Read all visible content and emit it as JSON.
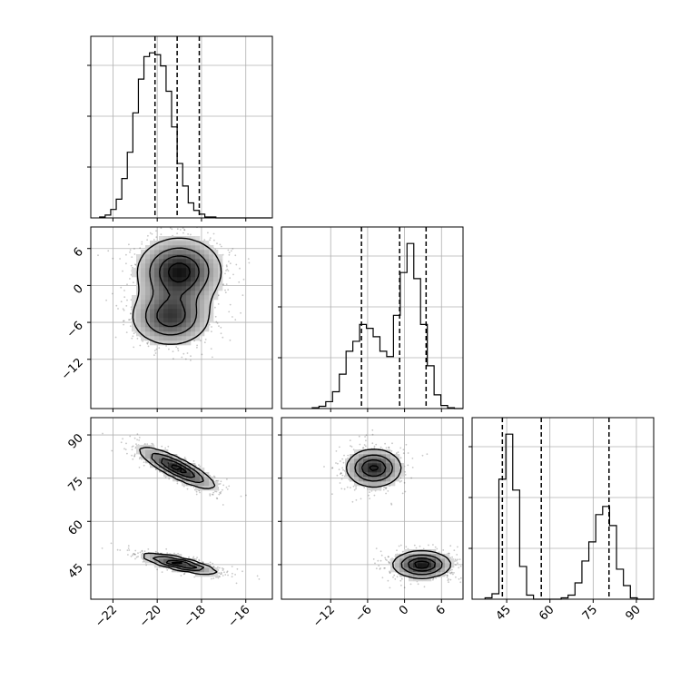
{
  "chart_data": {
    "type": "corner",
    "parameters": [
      {
        "range": [
          -23.0,
          -14.8
        ],
        "ticks": [
          -22,
          -20,
          -18,
          -16
        ],
        "quantiles": [
          -20.1,
          -19.1,
          -18.1
        ]
      },
      {
        "range": [
          -20.0,
          9.5
        ],
        "ticks": [
          -12,
          -6,
          0,
          6
        ],
        "quantiles": [
          -7.0,
          -0.8,
          3.5
        ]
      },
      {
        "range": [
          33.0,
          96.0
        ],
        "ticks": [
          45,
          60,
          75,
          90
        ],
        "quantiles": [
          43.5,
          57.0,
          80.5
        ]
      }
    ],
    "histograms": [
      {
        "param": 0,
        "edges_start": -22.6,
        "bin_width": 0.25,
        "counts": [
          1,
          3,
          9,
          20,
          42,
          70,
          112,
          148,
          172,
          176,
          174,
          162,
          135,
          97,
          58,
          34,
          16,
          8,
          4,
          1,
          1,
          0,
          0,
          0,
          0,
          0,
          0,
          0,
          0,
          0,
          0
        ]
      },
      {
        "param": 1,
        "edges_start": -15.0,
        "bin_width": 1.1,
        "counts": [
          1,
          3,
          9,
          22,
          45,
          75,
          88,
          110,
          105,
          94,
          75,
          68,
          122,
          178,
          216,
          170,
          110,
          56,
          18,
          4,
          1,
          0,
          0,
          0,
          0,
          0,
          0
        ]
      },
      {
        "param": 2,
        "edges_start": 37.5,
        "bin_width": 2.4,
        "counts": [
          1,
          4,
          88,
          121,
          80,
          24,
          3,
          0,
          0,
          0,
          0,
          1,
          3,
          12,
          28,
          42,
          62,
          68,
          54,
          22,
          10,
          1,
          0,
          0,
          0,
          0,
          0
        ]
      }
    ],
    "joint": [
      {
        "x": 0,
        "y": 1,
        "modes": [
          {
            "cx": -19.0,
            "cy": 2.3,
            "sx": 1.05,
            "sy": 3.0,
            "weight": 0.55,
            "rho": 0
          },
          {
            "cx": -19.4,
            "cy": -5.2,
            "sx": 1.0,
            "sy": 2.6,
            "weight": 0.45,
            "rho": 0
          }
        ]
      },
      {
        "x": 0,
        "y": 2,
        "modes": [
          {
            "cx": -19.1,
            "cy": 78.5,
            "sx": 0.95,
            "sy": 4.0,
            "weight": 0.5,
            "rho": -0.85
          },
          {
            "cx": -19.0,
            "cy": 45.3,
            "sx": 0.95,
            "sy": 2.0,
            "weight": 0.5,
            "rho": -0.8
          }
        ]
      },
      {
        "x": 1,
        "y": 2,
        "modes": [
          {
            "cx": -5.0,
            "cy": 78.5,
            "sx": 2.5,
            "sy": 3.7,
            "weight": 0.48,
            "rho": 0
          },
          {
            "cx": 2.8,
            "cy": 45.0,
            "sx": 2.6,
            "sy": 2.6,
            "weight": 0.52,
            "rho": 0
          }
        ]
      }
    ],
    "contour_levels": [
      0.2,
      0.45,
      0.7,
      0.9
    ],
    "grid": true,
    "legend": "none"
  }
}
